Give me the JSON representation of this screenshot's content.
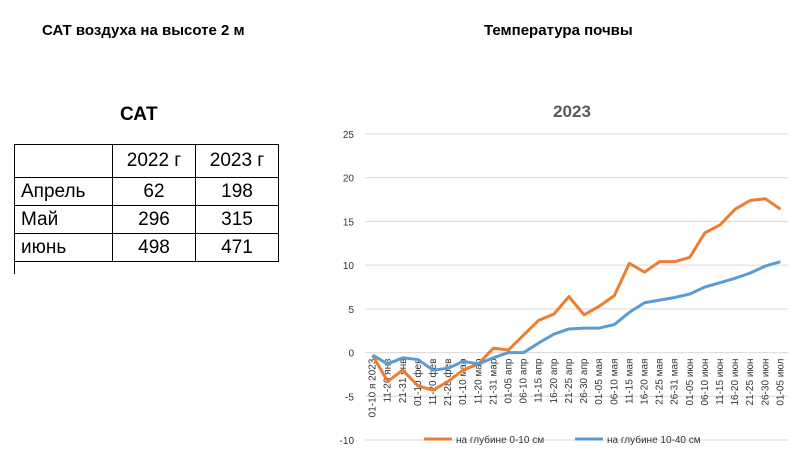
{
  "headings": {
    "left": "САТ воздуха на высоте 2 м",
    "right": "Температура почвы"
  },
  "table": {
    "title": "САТ",
    "columns": [
      "",
      "2022 г",
      "2023 г"
    ],
    "rows": [
      {
        "label": "Апрель",
        "v2022": "62",
        "v2023": "198"
      },
      {
        "label": "Май",
        "v2022": "296",
        "v2023": "315"
      },
      {
        "label": "июнь",
        "v2022": "498",
        "v2023": "471"
      }
    ]
  },
  "chart_data": {
    "type": "line",
    "title": "2023",
    "xlabel": "",
    "ylabel": "",
    "ylim": [
      -10,
      25
    ],
    "yticks": [
      -10,
      -5,
      0,
      5,
      10,
      15,
      20,
      25
    ],
    "grid": true,
    "legend_position": "bottom",
    "categories": [
      "01-10 я 2023",
      "11-20 янв",
      "21-31 янв",
      "01-10 фев",
      "11-20 фев",
      "21-28 фев",
      "01-10 мар",
      "11-20 мар",
      "21-31 мар",
      "01-05 апр",
      "06-10 апр",
      "11-15 апр",
      "16-20 апр",
      "21-25 апр",
      "26-30 апр",
      "01-05 мая",
      "06-10 мая",
      "11-15 мая",
      "16-20 мая",
      "21-25 мая",
      "26-31 мая",
      "01-05 июн",
      "06-10 июн",
      "11-15 июн",
      "16-20 июн",
      "21-25 июн",
      "26-30 июн",
      "01-05 июл"
    ],
    "series": [
      {
        "name": "на глубине 0-10 см",
        "color": "#ED7D31",
        "values": [
          -0.3,
          -3.3,
          -2.0,
          -3.8,
          -4.3,
          -3.3,
          -2.0,
          -1.3,
          0.5,
          0.3,
          2.0,
          3.7,
          4.4,
          6.4,
          4.3,
          5.3,
          6.5,
          10.2,
          9.2,
          10.4,
          10.4,
          10.9,
          13.7,
          14.6,
          16.4,
          17.4,
          17.6,
          16.4
        ]
      },
      {
        "name": "на глубине 10-40 см",
        "color": "#5B9BD5",
        "values": [
          -0.3,
          -1.3,
          -0.6,
          -0.8,
          -2.0,
          -1.8,
          -1.0,
          -1.3,
          -0.6,
          0.0,
          0.0,
          1.1,
          2.1,
          2.7,
          2.8,
          2.8,
          3.2,
          4.6,
          5.7,
          6.0,
          6.3,
          6.7,
          7.5,
          8.0,
          8.5,
          9.1,
          9.9,
          10.4
        ]
      }
    ]
  }
}
